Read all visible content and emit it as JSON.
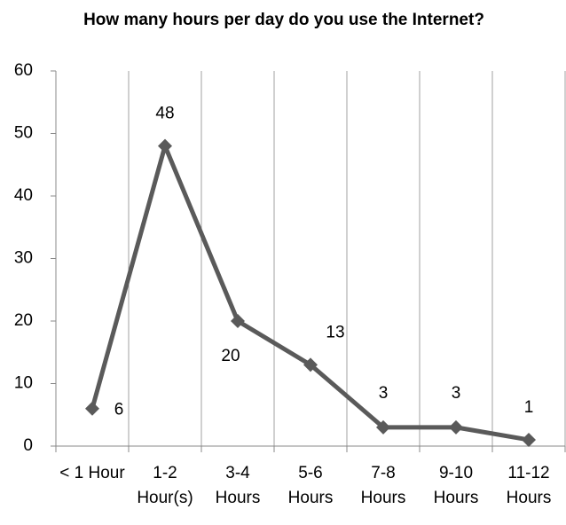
{
  "chart_data": {
    "type": "line",
    "title": "How many hours per day do you use the Internet?",
    "categories": [
      "< 1 Hour",
      "1-2 Hour(s)",
      "3-4 Hours",
      "5-6 Hours",
      "7-8 Hours",
      "9-10 Hours",
      "11-12 Hours"
    ],
    "values": [
      6,
      48,
      20,
      13,
      3,
      3,
      1
    ],
    "color": "#5a5a5a",
    "ylim": [
      0,
      60
    ],
    "yticks": [
      0,
      10,
      20,
      30,
      40,
      50,
      60
    ],
    "grid": true
  }
}
